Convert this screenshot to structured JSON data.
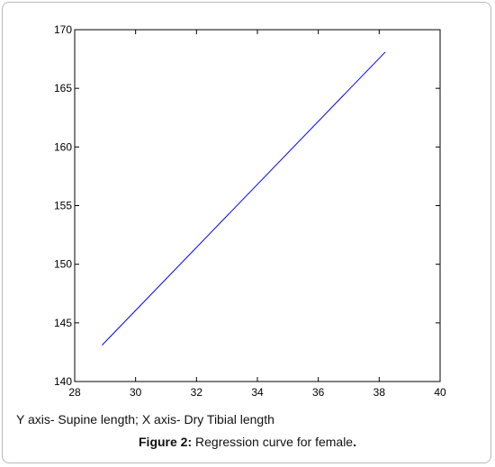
{
  "chart_data": {
    "type": "line",
    "xlim": [
      28,
      40
    ],
    "ylim": [
      140,
      170
    ],
    "x_ticks": [
      28,
      30,
      32,
      34,
      36,
      38,
      40
    ],
    "y_ticks": [
      140,
      145,
      150,
      155,
      160,
      165,
      170
    ],
    "series": [
      {
        "x": [
          28.9,
          38.2
        ],
        "y": [
          143.1,
          168.1
        ],
        "color": "#0000ff"
      }
    ],
    "grid": false
  },
  "axis_note": "Y axis- Supine length; X axis- Dry Tibial length",
  "caption": {
    "label": "Figure 2:",
    "text": " Regression curve for female",
    "end": "."
  }
}
